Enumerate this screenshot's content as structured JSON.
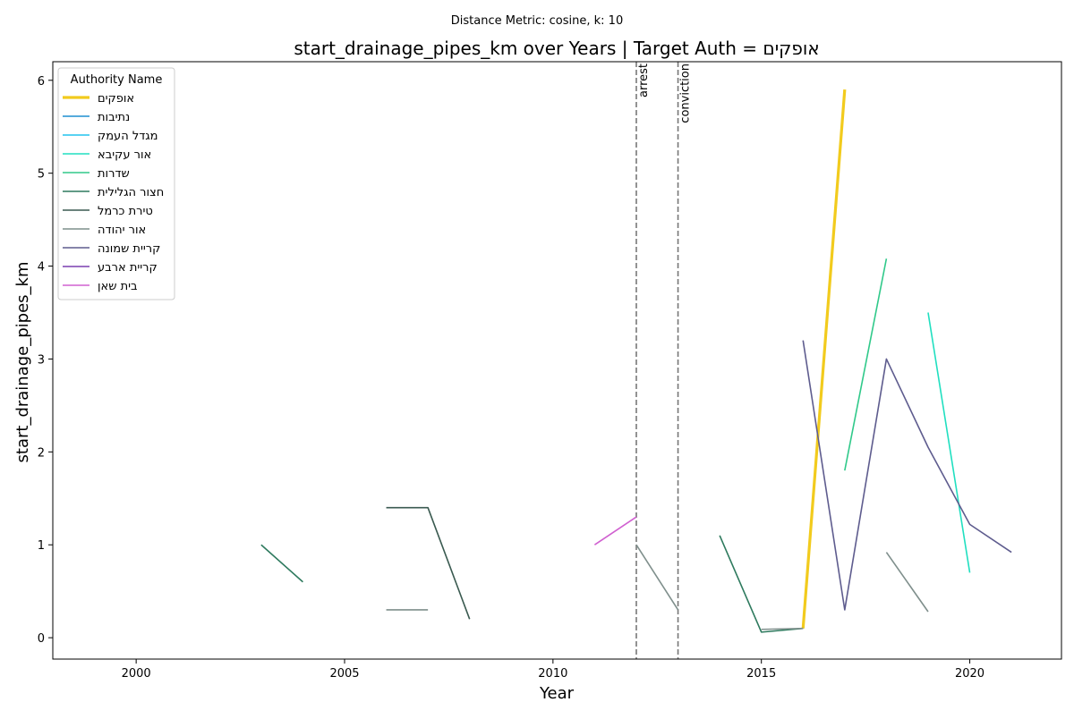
{
  "suptitle": "Distance Metric: cosine, k: 10",
  "chart_data": {
    "type": "line",
    "title": "start_drainage_pipes_km over Years | Target Auth = אופקים",
    "xlabel": "Year",
    "ylabel": "start_drainage_pipes_km",
    "xlim": [
      1998,
      2022.2
    ],
    "ylim": [
      -0.23,
      6.2
    ],
    "x_ticks": [
      2000,
      2005,
      2010,
      2015,
      2020
    ],
    "y_ticks": [
      0,
      1,
      2,
      3,
      4,
      5,
      6
    ],
    "grid": false,
    "legend": {
      "title": "Authority Name",
      "placement": "top-left"
    },
    "events": [
      {
        "x": 2012,
        "label": "arrest"
      },
      {
        "x": 2013,
        "label": "conviction"
      }
    ],
    "series": [
      {
        "name": "אופקים",
        "color": "#f2cb1d",
        "width": 3.2,
        "segments": [
          [
            [
              2016,
              0.1
            ],
            [
              2017,
              5.9
            ]
          ]
        ]
      },
      {
        "name": "נתיבות",
        "color": "#1f8fd0",
        "width": 1.6,
        "segments": []
      },
      {
        "name": "מגדל העמק",
        "color": "#22c4ee",
        "width": 1.6,
        "segments": []
      },
      {
        "name": "אור עקיבא",
        "color": "#20dfc0",
        "width": 1.6,
        "segments": [
          [
            [
              2019,
              3.5
            ],
            [
              2020,
              0.7
            ]
          ]
        ]
      },
      {
        "name": "שדרות",
        "color": "#30c98a",
        "width": 1.6,
        "segments": [
          [
            [
              2017,
              1.8
            ],
            [
              2018,
              4.08
            ]
          ]
        ]
      },
      {
        "name": "חצור הגלילית",
        "color": "#2e7a5e",
        "width": 1.6,
        "segments": [
          [
            [
              2003,
              1.0
            ],
            [
              2004,
              0.6
            ]
          ],
          [
            [
              2014,
              1.1
            ],
            [
              2015,
              0.06
            ],
            [
              2016,
              0.1
            ]
          ]
        ]
      },
      {
        "name": "טירת כרמל",
        "color": "#3a5a50",
        "width": 1.6,
        "segments": [
          [
            [
              2006,
              1.4
            ],
            [
              2007,
              1.4
            ],
            [
              2008,
              0.2
            ]
          ]
        ]
      },
      {
        "name": "אור יהודה",
        "color": "#7f8f8c",
        "width": 1.6,
        "segments": [
          [
            [
              2006,
              0.3
            ],
            [
              2007,
              0.3
            ]
          ],
          [
            [
              2012,
              1.0
            ],
            [
              2013,
              0.3
            ]
          ],
          [
            [
              2015,
              0.09
            ],
            [
              2016,
              0.1
            ]
          ],
          [
            [
              2018,
              0.92
            ],
            [
              2019,
              0.28
            ]
          ]
        ]
      },
      {
        "name": "קריית שמונה",
        "color": "#5e5c8e",
        "width": 1.6,
        "segments": [
          [
            [
              2016,
              3.2
            ],
            [
              2017,
              0.3
            ],
            [
              2018,
              3.0
            ],
            [
              2019,
              2.05
            ],
            [
              2020,
              1.22
            ],
            [
              2021,
              0.92
            ]
          ]
        ]
      },
      {
        "name": "קריית ארבע",
        "color": "#7a3eb0",
        "width": 1.6,
        "segments": []
      },
      {
        "name": "בית שאן",
        "color": "#d060d0",
        "width": 1.6,
        "segments": [
          [
            [
              2011,
              1.0
            ],
            [
              2012,
              1.3
            ]
          ]
        ]
      }
    ]
  }
}
